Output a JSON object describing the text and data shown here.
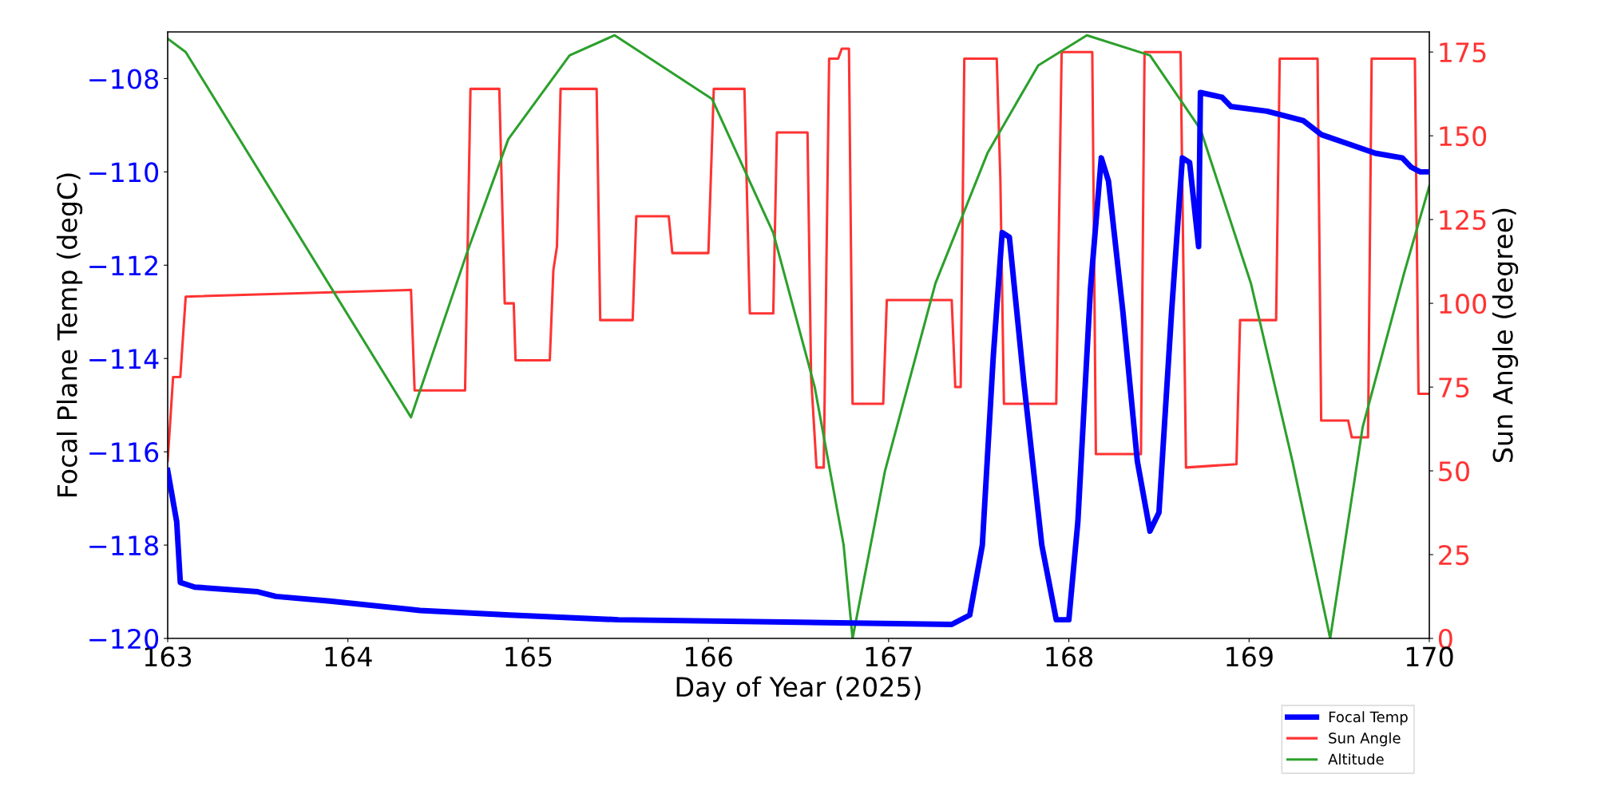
{
  "chart_data": {
    "type": "line",
    "xlabel": "Day of Year (2025)",
    "ylabel": "Focal Plane Temp (degC)",
    "y2label": "Sun Angle (degree)",
    "xlim": [
      163,
      170
    ],
    "xticks": [
      163,
      164,
      165,
      166,
      167,
      168,
      169,
      170
    ],
    "ylim": [
      -120,
      -107
    ],
    "yticks": [
      -120,
      -118,
      -116,
      -114,
      -112,
      -110,
      -108
    ],
    "y2lim": [
      0,
      181
    ],
    "y2ticks": [
      0,
      25,
      50,
      75,
      100,
      125,
      150,
      175
    ],
    "grid": false,
    "legend": "bottom right",
    "series": [
      {
        "name": "Focal Temp",
        "color": "#0000ff",
        "axis": "y",
        "x": [
          163.0,
          163.05,
          163.07,
          163.15,
          163.5,
          163.6,
          163.9,
          164.4,
          164.9,
          165.5,
          167.35,
          167.45,
          167.52,
          167.58,
          167.63,
          167.67,
          167.75,
          167.85,
          167.93,
          168.0,
          168.05,
          168.12,
          168.18,
          168.22,
          168.3,
          168.38,
          168.45,
          168.5,
          168.57,
          168.63,
          168.67,
          168.72,
          168.73,
          168.85,
          168.9,
          169.1,
          169.3,
          169.4,
          169.55,
          169.7,
          169.85,
          169.9,
          169.95,
          170.0
        ],
        "values": [
          -116.4,
          -117.5,
          -118.8,
          -118.9,
          -119.0,
          -119.1,
          -119.2,
          -119.4,
          -119.5,
          -119.6,
          -119.7,
          -119.5,
          -118,
          -114,
          -111.3,
          -111.4,
          -114.5,
          -118,
          -119.6,
          -119.6,
          -117.5,
          -112.5,
          -109.7,
          -110.2,
          -113,
          -116.2,
          -117.7,
          -117.3,
          -113,
          -109.7,
          -109.8,
          -111.6,
          -108.3,
          -108.4,
          -108.6,
          -108.7,
          -108.9,
          -109.2,
          -109.4,
          -109.6,
          -109.7,
          -109.9,
          -110,
          -110
        ]
      },
      {
        "name": "Sun Angle",
        "color": "#ff3333",
        "axis": "y2",
        "x": [
          163.0,
          163.03,
          163.07,
          163.1,
          164.35,
          164.37,
          164.65,
          164.68,
          164.84,
          164.87,
          164.92,
          164.93,
          165.12,
          165.14,
          165.16,
          165.18,
          165.38,
          165.4,
          165.58,
          165.6,
          165.78,
          165.8,
          166.0,
          166.03,
          166.2,
          166.23,
          166.36,
          166.38,
          166.55,
          166.57,
          166.6,
          166.64,
          166.67,
          166.72,
          166.74,
          166.78,
          166.8,
          166.97,
          166.99,
          167.35,
          167.37,
          167.4,
          167.42,
          167.6,
          167.62,
          167.64,
          167.93,
          167.96,
          168.13,
          168.15,
          168.4,
          168.42,
          168.62,
          168.65,
          168.93,
          168.95,
          169.15,
          169.17,
          169.38,
          169.4,
          169.55,
          169.57,
          169.66,
          169.68,
          169.92,
          169.94,
          170.0
        ],
        "values": [
          53,
          78,
          78,
          102,
          104,
          74,
          74,
          164,
          164,
          100,
          100,
          83,
          83,
          110,
          117,
          164,
          164,
          95,
          95,
          126,
          126,
          115,
          115,
          164,
          164,
          97,
          97,
          151,
          151,
          78,
          51,
          51,
          173,
          173,
          176,
          176,
          70,
          70,
          101,
          101,
          75,
          75,
          173,
          173,
          137,
          70,
          70,
          175,
          175,
          55,
          55,
          175,
          175,
          51,
          52,
          95,
          95,
          173,
          173,
          65,
          65,
          60,
          60,
          173,
          173,
          73,
          73
        ]
      },
      {
        "name": "Altitude",
        "color": "#2ca02c",
        "axis": "y2",
        "x": [
          163.0,
          163.1,
          164.35,
          164.66,
          164.89,
          165.23,
          165.48,
          166.02,
          166.36,
          166.59,
          166.75,
          166.8,
          166.98,
          167.26,
          167.55,
          167.83,
          168.1,
          168.45,
          168.73,
          169.01,
          169.24,
          169.45,
          169.63,
          169.86,
          170.0
        ],
        "values": [
          179,
          175,
          66,
          115,
          149,
          174,
          180,
          161,
          121,
          75,
          28,
          0,
          50,
          106,
          145,
          171,
          180,
          174,
          152,
          106,
          53,
          0,
          63,
          109,
          135
        ]
      }
    ]
  }
}
